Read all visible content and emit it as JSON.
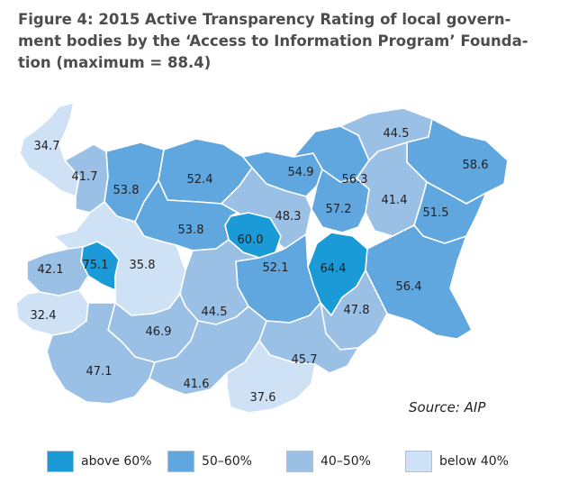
{
  "title_lines": [
    "Figure 4: 2015 Active Transparency Rating of local govern-",
    "ment bodies by the ‘Access to Information Program’ Founda-",
    "tion (maximum = 88.4)"
  ],
  "source": "Source: AIP",
  "colors": {
    "above_60": "#1a9ad6",
    "50_60": "#5fa7de",
    "40_50": "#9ac0e6",
    "below_40": "#cfe1f4",
    "border": "#ffffff"
  },
  "legend": [
    {
      "label": "above 60%",
      "color": "#1a9ad6"
    },
    {
      "label": "50–60%",
      "color": "#5fa7de"
    },
    {
      "label": "40–50%",
      "color": "#9ac0e6"
    },
    {
      "label": "below 40%",
      "color": "#cfe1f4"
    }
  ],
  "districts": [
    {
      "value": "34.7",
      "class": "below_40"
    },
    {
      "value": "41.7",
      "class": "40_50"
    },
    {
      "value": "53.8",
      "class": "50_60"
    },
    {
      "value": "52.4",
      "class": "50_60"
    },
    {
      "value": "54.9",
      "class": "50_60"
    },
    {
      "value": "56.3",
      "class": "50_60"
    },
    {
      "value": "44.5",
      "class": "40_50"
    },
    {
      "value": "58.6",
      "class": "50_60"
    },
    {
      "value": "41.4",
      "class": "40_50"
    },
    {
      "value": "51.5",
      "class": "50_60"
    },
    {
      "value": "57.2",
      "class": "50_60"
    },
    {
      "value": "48.3",
      "class": "40_50"
    },
    {
      "value": "60.0",
      "class": "above_60"
    },
    {
      "value": "53.8",
      "class": "50_60"
    },
    {
      "value": "75.1",
      "class": "above_60"
    },
    {
      "value": "35.8",
      "class": "below_40"
    },
    {
      "value": "42.1",
      "class": "40_50"
    },
    {
      "value": "32.4",
      "class": "below_40"
    },
    {
      "value": "64.4",
      "class": "above_60"
    },
    {
      "value": "52.1",
      "class": "50_60"
    },
    {
      "value": "56.4",
      "class": "50_60"
    },
    {
      "value": "44.5",
      "class": "40_50"
    },
    {
      "value": "47.8",
      "class": "40_50"
    },
    {
      "value": "46.9",
      "class": "40_50"
    },
    {
      "value": "47.1",
      "class": "40_50"
    },
    {
      "value": "45.7",
      "class": "40_50"
    },
    {
      "value": "41.6",
      "class": "40_50"
    },
    {
      "value": "37.6",
      "class": "below_40"
    }
  ]
}
